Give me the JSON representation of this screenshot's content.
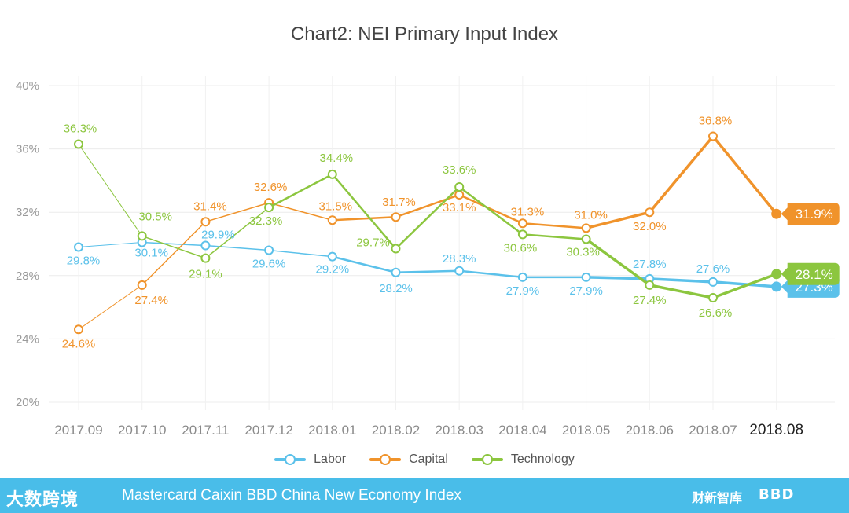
{
  "chart_data": {
    "type": "line",
    "title": "Chart2: NEI Primary Input Index",
    "xlabel": "",
    "ylabel": "",
    "categories": [
      "2017.09",
      "2017.10",
      "2017.11",
      "2017.12",
      "2018.01",
      "2018.02",
      "2018.03",
      "2018.04",
      "2018.05",
      "2018.06",
      "2018.07",
      "2018.08"
    ],
    "ylim": [
      20,
      40
    ],
    "yticks": [
      20,
      24,
      28,
      32,
      36,
      40
    ],
    "ytick_labels": [
      "20%",
      "24%",
      "28%",
      "32%",
      "36%",
      "40%"
    ],
    "grid": true,
    "legend_position": "bottom",
    "series": [
      {
        "name": "Labor",
        "color": "#5bc1ea",
        "values": [
          29.8,
          30.1,
          29.9,
          29.6,
          29.2,
          28.2,
          28.3,
          27.9,
          27.9,
          27.8,
          27.6,
          27.3
        ],
        "labels": [
          "29.8%",
          "30.1%",
          "29.9%",
          "29.6%",
          "29.2%",
          "28.2%",
          "28.3%",
          "27.9%",
          "27.9%",
          "27.8%",
          "27.6%",
          "27.3%"
        ]
      },
      {
        "name": "Capital",
        "color": "#f0932b",
        "values": [
          24.6,
          27.4,
          31.4,
          32.6,
          31.5,
          31.7,
          33.1,
          31.3,
          31.0,
          32.0,
          36.8,
          31.9
        ],
        "labels": [
          "24.6%",
          "27.4%",
          "31.4%",
          "32.6%",
          "31.5%",
          "31.7%",
          "33.1%",
          "31.3%",
          "31.0%",
          "32.0%",
          "36.8%",
          "31.9%"
        ]
      },
      {
        "name": "Technology",
        "color": "#8cc63f",
        "values": [
          36.3,
          30.5,
          29.1,
          32.3,
          34.4,
          29.7,
          33.6,
          30.6,
          30.3,
          27.4,
          26.6,
          28.1
        ],
        "labels": [
          "36.3%",
          "30.5%",
          "29.1%",
          "32.3%",
          "34.4%",
          "29.7%",
          "33.6%",
          "30.6%",
          "30.3%",
          "27.4%",
          "26.6%",
          "28.1%"
        ]
      }
    ]
  },
  "footer": {
    "brand": "大数跨境",
    "text": "Mastercard Caixin BBD China New Economy Index",
    "logo1": "财新智库",
    "logo2": "BBD"
  }
}
